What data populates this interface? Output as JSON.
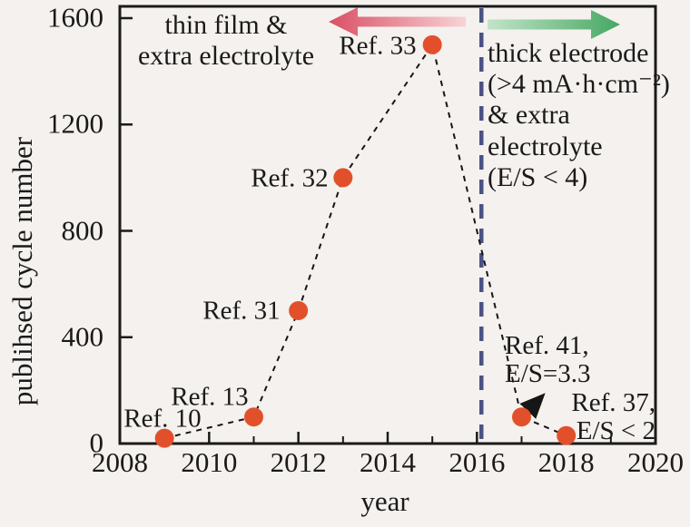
{
  "figure": {
    "background": "#f4f1ee",
    "axis_color": "#1a1a1a"
  },
  "chart_data": {
    "type": "scatter",
    "title": "",
    "xlabel": "year",
    "ylabel": "publihsed cycle number",
    "xlim": [
      2008,
      2020
    ],
    "ylim": [
      0,
      1600
    ],
    "x_ticks": [
      2008,
      2010,
      2012,
      2014,
      2016,
      2018,
      2020
    ],
    "x_minor_ticks": [
      2009,
      2011,
      2013,
      2015,
      2017,
      2019
    ],
    "y_ticks": [
      0,
      400,
      800,
      1200,
      1600
    ],
    "grid": false,
    "legend": "none",
    "marker_color": "#e2502b",
    "connector_color": "#161616",
    "connector_style": "dashed",
    "points": [
      {
        "x": 2009,
        "y": 20,
        "label": "Ref. 10"
      },
      {
        "x": 2011,
        "y": 100,
        "label": "Ref. 13"
      },
      {
        "x": 2012,
        "y": 500,
        "label": "Ref. 31"
      },
      {
        "x": 2013,
        "y": 1000,
        "label": "Ref. 32"
      },
      {
        "x": 2015,
        "y": 1500,
        "label": "Ref. 33"
      },
      {
        "x": 2017,
        "y": 100,
        "label": "Ref. 41,\nE/S=3.3"
      },
      {
        "x": 2018,
        "y": 30,
        "label": "Ref. 37,\nE/S < 2"
      }
    ],
    "divider": {
      "x": 2016.1,
      "color": "#4a5185",
      "style": "dashed"
    },
    "annotations": {
      "left_region": {
        "text": "thin film &\nextra electrolyte",
        "arrow_direction": "left",
        "arrow_color_tip": "#d94f63",
        "arrow_color_tail": "#f8d3d6"
      },
      "right_region": {
        "text": "thick electrode\n(>4 mA·h·cm⁻²)\n& extra\nelectrolyte\n(E/S < 4)",
        "arrow_direction": "right",
        "arrow_color_tip": "#46a862",
        "arrow_color_tail": "#c2e4c9"
      }
    }
  }
}
